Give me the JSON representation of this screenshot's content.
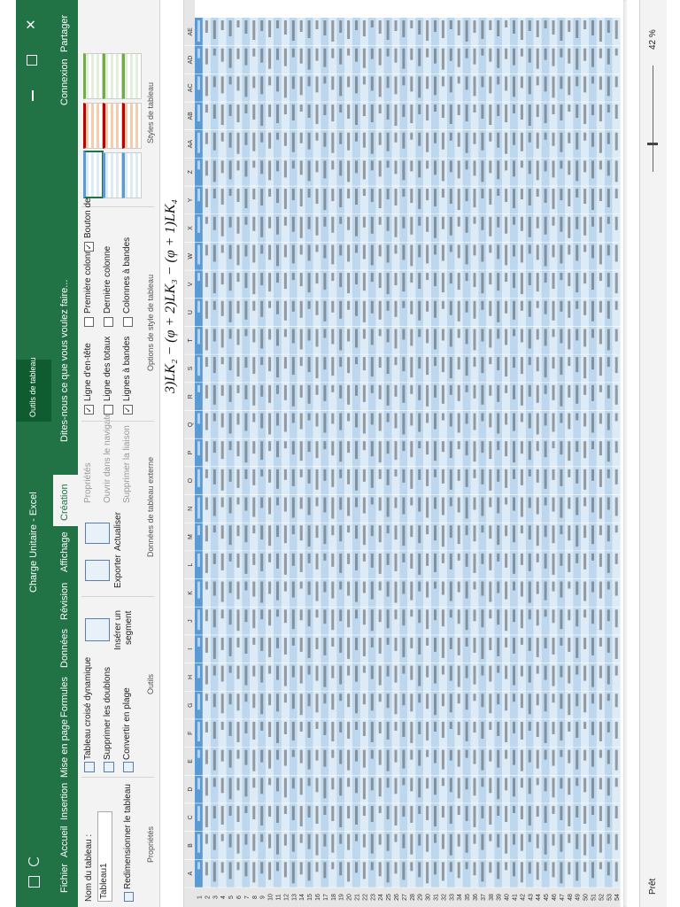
{
  "title_bar": {
    "document_title": "Charge Unitaire - Excel",
    "context_tab": "Outils de tableau"
  },
  "tabs": [
    "Fichier",
    "Accueil",
    "Insertion",
    "Mise en page",
    "Formules",
    "Données",
    "Révision",
    "Affichage",
    "Création"
  ],
  "tell_me": "Dites-nous ce que vous voulez faire...",
  "account": {
    "sign_in": "Connexion",
    "share": "Partager"
  },
  "ribbon": {
    "properties": {
      "name_label": "Nom du tableau :",
      "table_name": "Tableau1",
      "resize": "Redimensionner le tableau",
      "group": "Propriétés"
    },
    "tools": {
      "pivot": "Tableau croisé dynamique",
      "remove_duplicates": "Supprimer les doublons",
      "convert": "Convertir en plage",
      "slicer_1": "Insérer un",
      "slicer_2": "segment",
      "group": "Outils"
    },
    "external": {
      "export": "Exporter",
      "refresh": "Actualiser",
      "properties": "Propriétés",
      "open_browser": "Ouvrir dans le navigateur",
      "unlink": "Supprimer la liaison",
      "group": "Données de tableau externe"
    },
    "style_options": {
      "options": [
        {
          "label": "Ligne d'en-tête",
          "checked": true
        },
        {
          "label": "Ligne des totaux",
          "checked": false
        },
        {
          "label": "Lignes à bandes",
          "checked": true
        },
        {
          "label": "Première colonne",
          "checked": false
        },
        {
          "label": "Dernière colonne",
          "checked": false
        },
        {
          "label": "Colonnes à bandes",
          "checked": false
        },
        {
          "label": "Bouton de filtre",
          "checked": true
        }
      ],
      "group": "Options de style de tableau"
    },
    "styles": {
      "group": "Styles de tableau"
    }
  },
  "formula": "3)LK₂ − (φ + 2)LK₃ − (φ + 1)LK₄",
  "sheet": {
    "columns": [
      "A",
      "B",
      "C",
      "D",
      "E",
      "F",
      "G",
      "H",
      "I",
      "J",
      "K",
      "L",
      "M",
      "N",
      "O",
      "P",
      "Q",
      "R",
      "S",
      "T",
      "U",
      "V",
      "W",
      "X",
      "Y",
      "Z",
      "AA",
      "AB",
      "AC",
      "AD",
      "AE"
    ],
    "rows": [
      1,
      2,
      3,
      4,
      5,
      6,
      7,
      8,
      9,
      10,
      11,
      12,
      13,
      14,
      15,
      16,
      17,
      18,
      19,
      20,
      21,
      22,
      23,
      24,
      25,
      26,
      27,
      28,
      29,
      30,
      31,
      32,
      33,
      34,
      35,
      36,
      37,
      38,
      39,
      40,
      41,
      42,
      43,
      44,
      45,
      46,
      47,
      48,
      49,
      50,
      51,
      52,
      53,
      54
    ]
  },
  "status": {
    "ready": "Prêt",
    "zoom": "42 %"
  }
}
